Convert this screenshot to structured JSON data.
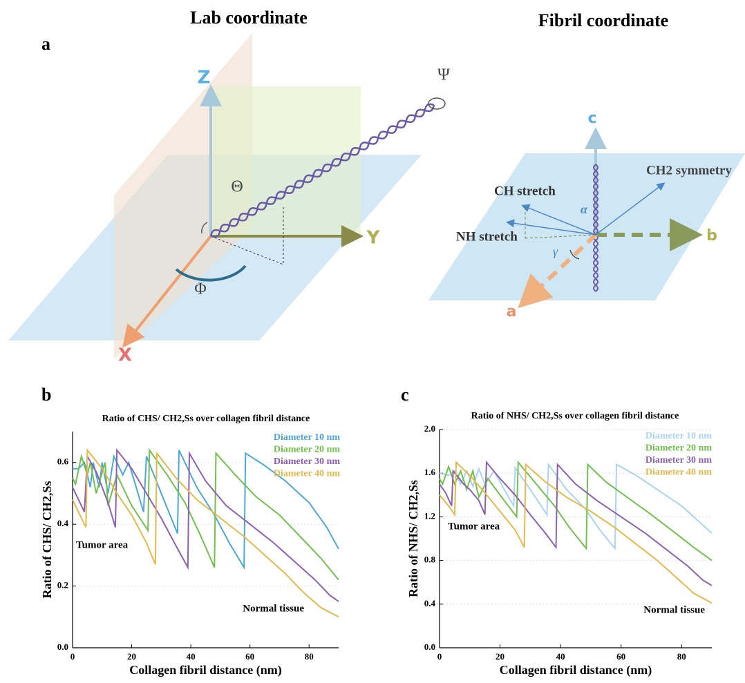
{
  "labels": {
    "panel_a": "a",
    "panel_b": "b",
    "panel_c": "c"
  },
  "diagram": {
    "lab_title": "Lab coordinate",
    "fibril_title": "Fibril coordinate",
    "lab": {
      "z": "Z",
      "y": "Y",
      "x": "X",
      "theta": "Θ",
      "phi": "Φ",
      "psi": "Ψ"
    },
    "fibril": {
      "c": "c",
      "b": "b",
      "a": "a",
      "ch": "CH stretch",
      "nh": "NH stretch",
      "ch2": "CH2 symmetry",
      "alpha": "α",
      "gamma": "γ"
    }
  },
  "chart_data": [
    {
      "type": "line",
      "title": "Ratio of CHS/ CH2,Ss over collagen fibril distance",
      "xlabel": "Collagen fibril distance (nm)",
      "ylabel": "Ratio of CHS/ CH2,Ss",
      "xlim": [
        0,
        90
      ],
      "xticks": [
        0,
        20,
        40,
        60,
        80
      ],
      "ylim": [
        0,
        0.7
      ],
      "yticks": [
        {
          "value": 0,
          "label": "0.0"
        },
        0.2,
        0.4,
        0.6
      ],
      "grid": true,
      "annotations": [
        "Tumor area",
        "Normal tissue"
      ],
      "series": [
        {
          "name": "Diameter 10 nm",
          "color": "#4aa8dc",
          "x": [
            0,
            2,
            4,
            6,
            7,
            9,
            10,
            12,
            14,
            17,
            19,
            24,
            25,
            30,
            35.5,
            36,
            42,
            48,
            53,
            58,
            58.5,
            65,
            72,
            80,
            86,
            90
          ],
          "values": [
            0.58,
            0.58,
            0.6,
            0.52,
            0.6,
            0.52,
            0.6,
            0.5,
            0.62,
            0.56,
            0.6,
            0.44,
            0.62,
            0.5,
            0.37,
            0.64,
            0.52,
            0.43,
            0.34,
            0.26,
            0.63,
            0.59,
            0.54,
            0.47,
            0.39,
            0.32
          ]
        },
        {
          "name": "Diameter 20 nm",
          "color": "#6fc24a",
          "x": [
            0,
            1,
            3,
            5,
            6,
            8,
            11,
            12,
            15,
            20,
            25.5,
            26,
            32,
            38,
            43,
            48,
            48.5,
            55,
            62,
            70,
            78,
            84,
            90
          ],
          "values": [
            0.55,
            0.53,
            0.62,
            0.56,
            0.6,
            0.5,
            0.6,
            0.46,
            0.56,
            0.46,
            0.38,
            0.64,
            0.56,
            0.47,
            0.37,
            0.26,
            0.63,
            0.56,
            0.49,
            0.43,
            0.35,
            0.29,
            0.22
          ]
        },
        {
          "name": "Diameter 30 nm",
          "color": "#8e5fb5",
          "x": [
            0,
            2,
            4,
            5,
            8,
            10,
            12,
            14.5,
            15,
            20,
            25,
            30,
            35,
            39,
            39.5,
            45,
            52,
            60,
            68,
            75,
            82,
            87,
            90
          ],
          "values": [
            0.52,
            0.48,
            0.44,
            0.62,
            0.57,
            0.52,
            0.47,
            0.39,
            0.64,
            0.58,
            0.5,
            0.42,
            0.33,
            0.26,
            0.63,
            0.54,
            0.46,
            0.4,
            0.34,
            0.28,
            0.22,
            0.17,
            0.15
          ]
        },
        {
          "name": "Diameter 40 nm",
          "color": "#e8b84a",
          "x": [
            0,
            3,
            4.5,
            5,
            10,
            15,
            20,
            25,
            28,
            28.5,
            35,
            42,
            50,
            58,
            65,
            72,
            78,
            84,
            90
          ],
          "values": [
            0.48,
            0.42,
            0.39,
            0.64,
            0.58,
            0.5,
            0.43,
            0.34,
            0.27,
            0.63,
            0.55,
            0.48,
            0.42,
            0.36,
            0.3,
            0.24,
            0.18,
            0.13,
            0.1
          ]
        }
      ]
    },
    {
      "type": "line",
      "title": "Ratio of NHS/ CH2,Ss over collagen fibril distance",
      "xlabel": "Collagen fibril distance (nm)",
      "ylabel": "Ratio of NHS/ CH2,Ss",
      "xlim": [
        0,
        90
      ],
      "xticks": [
        0,
        20,
        40,
        60,
        80
      ],
      "ylim": [
        0,
        2
      ],
      "yticks": [
        {
          "value": 0,
          "label": "0.0"
        },
        0.4,
        0.8,
        1.2,
        1.6,
        {
          "value": 2,
          "label": "2.0"
        }
      ],
      "grid": true,
      "annotations": [
        "Tumor area",
        "Normal tissue"
      ],
      "series": [
        {
          "name": "Diameter 10 nm",
          "color": "#a9d5f2",
          "x": [
            0,
            3,
            5,
            7,
            9,
            11,
            13,
            15,
            18,
            22,
            24.5,
            25,
            30,
            35.5,
            36,
            42,
            48,
            53,
            58,
            58.5,
            65,
            72,
            80,
            86,
            90
          ],
          "values": [
            1.6,
            1.58,
            1.62,
            1.5,
            1.62,
            1.48,
            1.64,
            1.5,
            1.62,
            1.42,
            1.3,
            1.65,
            1.45,
            1.22,
            1.68,
            1.45,
            1.28,
            1.08,
            0.91,
            1.68,
            1.58,
            1.45,
            1.3,
            1.15,
            1.05
          ]
        },
        {
          "name": "Diameter 20 nm",
          "color": "#6fc24a",
          "x": [
            0,
            1,
            3,
            5,
            7,
            9,
            11,
            13,
            16,
            20,
            25.5,
            26,
            32,
            38,
            43,
            48.5,
            49,
            55,
            62,
            70,
            78,
            84,
            90
          ],
          "values": [
            1.55,
            1.5,
            1.66,
            1.5,
            1.62,
            1.45,
            1.62,
            1.38,
            1.55,
            1.4,
            1.2,
            1.7,
            1.5,
            1.3,
            1.1,
            0.91,
            1.68,
            1.52,
            1.38,
            1.22,
            1.05,
            0.92,
            0.8
          ]
        },
        {
          "name": "Diameter 30 nm",
          "color": "#8e5fb5",
          "x": [
            0,
            2,
            4,
            4.5,
            8,
            10,
            13,
            15,
            15.5,
            20,
            25,
            30,
            35,
            38.5,
            39,
            45,
            52,
            60,
            68,
            75,
            82,
            87,
            90
          ],
          "values": [
            1.5,
            1.42,
            1.3,
            1.62,
            1.5,
            1.45,
            1.35,
            1.22,
            1.7,
            1.55,
            1.4,
            1.22,
            1.05,
            0.92,
            1.68,
            1.5,
            1.35,
            1.2,
            1.05,
            0.9,
            0.75,
            0.62,
            0.57
          ]
        },
        {
          "name": "Diameter 40 nm",
          "color": "#e8b84a",
          "x": [
            0,
            3,
            5,
            5.5,
            10,
            15,
            20,
            25,
            28,
            28.5,
            35,
            42,
            50,
            58,
            65,
            72,
            78,
            84,
            90
          ],
          "values": [
            1.4,
            1.3,
            1.22,
            1.7,
            1.58,
            1.42,
            1.25,
            1.08,
            0.92,
            1.68,
            1.52,
            1.38,
            1.25,
            1.1,
            0.95,
            0.8,
            0.65,
            0.5,
            0.41
          ]
        }
      ]
    }
  ]
}
